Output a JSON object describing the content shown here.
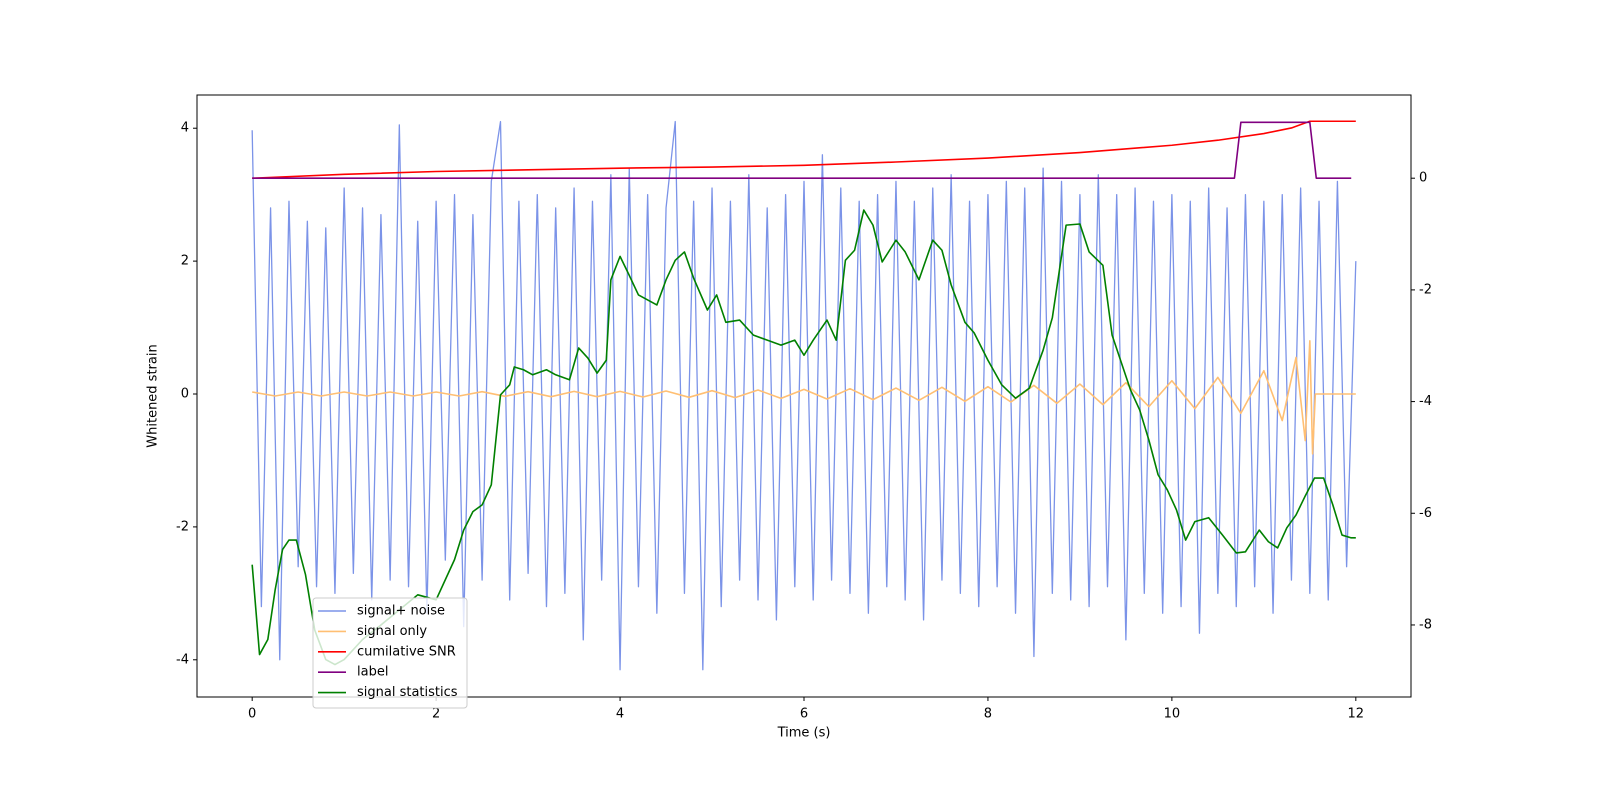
{
  "chart_data": {
    "type": "line",
    "xlabel": "Time (s)",
    "ylabel": "Whitened strain",
    "xlim": [
      -0.6,
      12.6
    ],
    "xticks": [
      0,
      2,
      4,
      6,
      8,
      10,
      12
    ],
    "ylim": [
      -4.56,
      4.5
    ],
    "yticks": [
      -4,
      -2,
      0,
      2,
      4
    ],
    "y2lim": [
      -9.29,
      1.49
    ],
    "y2ticks": [
      -8,
      -6,
      -4,
      -2,
      0
    ],
    "legend": true,
    "series": [
      {
        "name": "signal+ noise",
        "color": "#7b93e8",
        "x": [
          0,
          0.1,
          0.2,
          0.3,
          0.4,
          0.5,
          0.6,
          0.7,
          0.8,
          0.9,
          1,
          1.1,
          1.2,
          1.3,
          1.4,
          1.5,
          1.6,
          1.7,
          1.8,
          1.9,
          2,
          2.1,
          2.2,
          2.3,
          2.4,
          2.5,
          2.6,
          2.7,
          2.8,
          2.9,
          3,
          3.1,
          3.2,
          3.3,
          3.4,
          3.5,
          3.6,
          3.7,
          3.8,
          3.9,
          4,
          4.1,
          4.2,
          4.3,
          4.4,
          4.5,
          4.6,
          4.7,
          4.8,
          4.9,
          5,
          5.1,
          5.2,
          5.3,
          5.4,
          5.5,
          5.6,
          5.7,
          5.8,
          5.9,
          6,
          6.1,
          6.2,
          6.3,
          6.4,
          6.5,
          6.6,
          6.7,
          6.8,
          6.9,
          7,
          7.1,
          7.2,
          7.3,
          7.4,
          7.5,
          7.6,
          7.7,
          7.8,
          7.9,
          8,
          8.1,
          8.2,
          8.3,
          8.4,
          8.5,
          8.6,
          8.7,
          8.8,
          8.9,
          9,
          9.1,
          9.2,
          9.3,
          9.4,
          9.5,
          9.6,
          9.7,
          9.8,
          9.9,
          10,
          10.1,
          10.2,
          10.3,
          10.4,
          10.5,
          10.6,
          10.7,
          10.8,
          10.9,
          11,
          11.1,
          11.2,
          11.3,
          11.4,
          11.5,
          11.6,
          11.7,
          11.8,
          11.9,
          12
        ],
        "values": [
          3.97,
          -3.2,
          2.8,
          -4.0,
          2.9,
          -2.6,
          2.6,
          -2.9,
          2.5,
          -3.0,
          3.1,
          -2.7,
          2.8,
          -3.1,
          2.7,
          -2.8,
          4.05,
          -2.9,
          2.6,
          -3.3,
          2.9,
          -2.5,
          3.0,
          -3.5,
          2.7,
          -2.8,
          3.2,
          4.1,
          -3.1,
          2.9,
          -2.7,
          3.0,
          -3.2,
          2.8,
          -3.0,
          3.1,
          -3.7,
          2.9,
          -2.8,
          3.3,
          -4.15,
          3.4,
          -2.9,
          3.0,
          -3.3,
          2.8,
          4.1,
          -3.0,
          2.9,
          -4.15,
          3.1,
          -3.2,
          2.9,
          -2.8,
          3.3,
          -3.1,
          2.8,
          -3.4,
          3.0,
          -2.9,
          3.2,
          -3.1,
          3.6,
          -2.8,
          3.1,
          -3.0,
          2.9,
          -3.3,
          3.0,
          -2.9,
          3.2,
          -3.1,
          2.9,
          -3.4,
          3.1,
          -2.8,
          3.3,
          -3.0,
          2.9,
          -3.2,
          3.0,
          -2.9,
          3.2,
          -3.3,
          3.1,
          -3.95,
          3.4,
          -3.0,
          3.2,
          -3.1,
          3.0,
          -3.2,
          3.3,
          -2.9,
          3.0,
          -3.7,
          3.1,
          -3.0,
          2.9,
          -3.3,
          3.0,
          -3.2,
          2.9,
          -3.6,
          3.1,
          -3.0,
          2.8,
          -3.2,
          3.0,
          -2.9,
          2.9,
          -3.3,
          3.0,
          -2.8,
          3.1,
          -3.0,
          2.9,
          -3.1,
          3.2,
          -2.6,
          2.0
        ]
      },
      {
        "name": "signal only",
        "color": "#ffbf73",
        "x": [
          0,
          0.25,
          0.5,
          0.75,
          1,
          1.25,
          1.5,
          1.75,
          2,
          2.25,
          2.5,
          2.75,
          3,
          3.25,
          3.5,
          3.75,
          4,
          4.25,
          4.5,
          4.75,
          5,
          5.25,
          5.5,
          5.75,
          6,
          6.25,
          6.5,
          6.75,
          7,
          7.25,
          7.5,
          7.75,
          8,
          8.25,
          8.5,
          8.75,
          9,
          9.25,
          9.5,
          9.75,
          10,
          10.25,
          10.5,
          10.75,
          11,
          11.2,
          11.35,
          11.45,
          11.5,
          11.53,
          11.56,
          12
        ],
        "values": [
          0.03,
          -0.03,
          0.03,
          -0.03,
          0.03,
          -0.03,
          0.03,
          -0.03,
          0.03,
          -0.03,
          0.035,
          -0.035,
          0.035,
          -0.04,
          0.04,
          -0.04,
          0.04,
          -0.045,
          0.045,
          -0.05,
          0.05,
          -0.055,
          0.06,
          -0.065,
          0.07,
          -0.075,
          0.08,
          -0.085,
          0.09,
          -0.095,
          0.1,
          -0.11,
          0.11,
          -0.12,
          0.13,
          -0.14,
          0.15,
          -0.16,
          0.17,
          -0.19,
          0.2,
          -0.22,
          0.25,
          -0.29,
          0.35,
          -0.4,
          0.55,
          -0.7,
          0.8,
          -0.9,
          0,
          0
        ]
      },
      {
        "name": "cumilative SNR",
        "color": "#ff0000",
        "axis": "y2",
        "x": [
          0,
          1,
          2,
          3,
          4,
          5,
          6,
          7,
          8,
          9,
          10,
          10.5,
          11,
          11.3,
          11.5,
          12
        ],
        "values": [
          0,
          0.07,
          0.12,
          0.15,
          0.18,
          0.2,
          0.23,
          0.29,
          0.36,
          0.46,
          0.59,
          0.68,
          0.8,
          0.9,
          1.02,
          1.02
        ]
      },
      {
        "name": "label",
        "color": "#800080",
        "axis": "y2",
        "x": [
          0,
          10.68,
          10.75,
          11.5,
          11.57,
          11.95
        ],
        "values": [
          0,
          0,
          1,
          1,
          0,
          0
        ]
      },
      {
        "name": "signal statistics",
        "color": "#008000",
        "axis": "y2",
        "x": [
          0,
          0.08,
          0.17,
          0.25,
          0.33,
          0.4,
          0.48,
          0.58,
          0.68,
          0.8,
          0.9,
          1,
          1.2,
          1.4,
          1.6,
          1.8,
          2,
          2.2,
          2.3,
          2.4,
          2.5,
          2.6,
          2.7,
          2.8,
          2.85,
          2.95,
          3.05,
          3.2,
          3.3,
          3.45,
          3.55,
          3.65,
          3.75,
          3.85,
          3.9,
          4,
          4.1,
          4.2,
          4.3,
          4.4,
          4.5,
          4.6,
          4.7,
          4.8,
          4.95,
          5.05,
          5.15,
          5.3,
          5.45,
          5.6,
          5.75,
          5.9,
          6,
          6.1,
          6.25,
          6.35,
          6.45,
          6.55,
          6.65,
          6.75,
          6.85,
          7,
          7.1,
          7.25,
          7.4,
          7.5,
          7.6,
          7.75,
          7.85,
          8,
          8.15,
          8.3,
          8.45,
          8.6,
          8.7,
          8.85,
          9,
          9.1,
          9.25,
          9.35,
          9.55,
          9.65,
          9.75,
          9.85,
          9.95,
          10.05,
          10.15,
          10.25,
          10.4,
          10.55,
          10.7,
          10.8,
          10.95,
          11.05,
          11.15,
          11.25,
          11.35,
          11.45,
          11.55,
          11.65,
          11.75,
          11.85,
          11.95,
          12
        ],
        "values": [
          -6.92,
          -8.53,
          -8.26,
          -7.37,
          -6.65,
          -6.48,
          -6.48,
          -7.1,
          -8.09,
          -8.62,
          -8.71,
          -8.62,
          -8.26,
          -8.0,
          -7.73,
          -7.46,
          -7.55,
          -6.83,
          -6.3,
          -5.97,
          -5.85,
          -5.49,
          -3.88,
          -3.7,
          -3.38,
          -3.43,
          -3.52,
          -3.43,
          -3.52,
          -3.61,
          -3.04,
          -3.22,
          -3.49,
          -3.26,
          -1.82,
          -1.4,
          -1.74,
          -2.09,
          -2.18,
          -2.27,
          -1.82,
          -1.47,
          -1.32,
          -1.79,
          -2.36,
          -2.09,
          -2.58,
          -2.54,
          -2.81,
          -2.9,
          -2.99,
          -2.9,
          -3.17,
          -2.9,
          -2.54,
          -2.9,
          -1.47,
          -1.29,
          -0.57,
          -0.84,
          -1.5,
          -1.11,
          -1.32,
          -1.82,
          -1.11,
          -1.29,
          -1.91,
          -2.58,
          -2.77,
          -3.26,
          -3.7,
          -3.94,
          -3.76,
          -3.08,
          -2.5,
          -0.84,
          -0.82,
          -1.32,
          -1.56,
          -2.81,
          -3.79,
          -4.15,
          -4.69,
          -5.31,
          -5.58,
          -5.94,
          -6.48,
          -6.15,
          -6.08,
          -6.39,
          -6.71,
          -6.69,
          -6.3,
          -6.51,
          -6.62,
          -6.26,
          -6.03,
          -5.69,
          -5.37,
          -5.37,
          -5.85,
          -6.39,
          -6.44,
          -6.44
        ]
      }
    ]
  }
}
